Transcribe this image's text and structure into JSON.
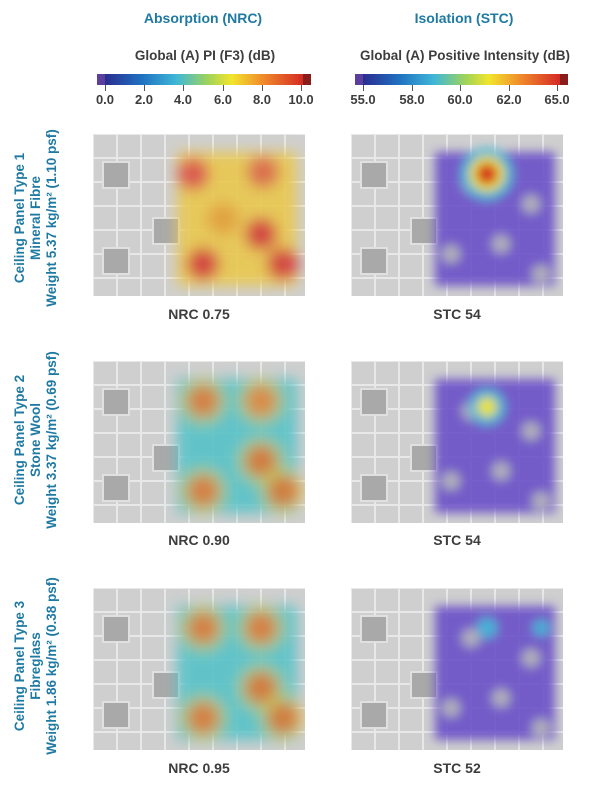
{
  "columns": {
    "absorption": "Absorption (NRC)",
    "isolation": "Isolation (STC)"
  },
  "scales": {
    "absorption": {
      "title": "Global (A) PI (F3) (dB)",
      "ticks": [
        "0.0",
        "2.0",
        "4.0",
        "6.0",
        "8.0",
        "10.0"
      ]
    },
    "isolation": {
      "title": "Global (A) Positive Intensity (dB)",
      "ticks": [
        "55.0",
        "58.0",
        "60.0",
        "62.0",
        "65.0"
      ]
    }
  },
  "rows": [
    {
      "title": "Ceiling Panel Type 1",
      "material": "Mineral Fibre",
      "weight": "Weight 5.37 kg/m² (1.10 psf)",
      "nrc": "NRC 0.75",
      "stc": "STC 54"
    },
    {
      "title": "Ceiling Panel Type 2",
      "material": "Stone Wool",
      "weight": "Weight 3.37 kg/m² (0.69 psf)",
      "nrc": "NRC 0.90",
      "stc": "STC 54"
    },
    {
      "title": "Ceiling Panel Type 3",
      "material": "Fibreglass",
      "weight": "Weight 1.86 kg/m² (0.38 psf)",
      "nrc": "NRC 0.95",
      "stc": "STC 52"
    }
  ],
  "colors": {
    "heading": "#1f7aa3",
    "text": "#3d3d3d",
    "colormap": [
      "#2a2d8f",
      "#1f6fc0",
      "#3fb7d8",
      "#f2e52c",
      "#f08a2a",
      "#d42a24",
      "#8a1c1c"
    ]
  }
}
